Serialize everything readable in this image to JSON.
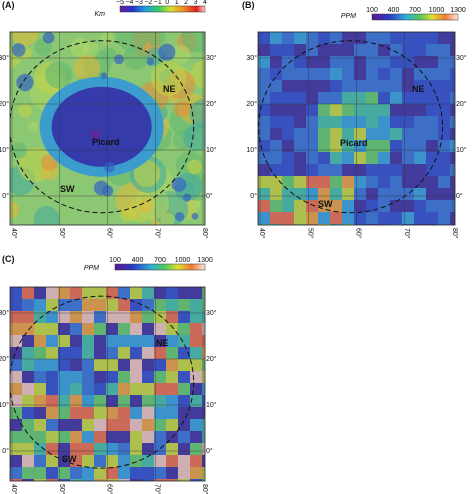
{
  "panels": [
    {
      "label": "(A)",
      "unit": "Km",
      "colorbar_ticks": [
        "−5",
        "−4",
        "−3",
        "−2",
        "−1",
        "0",
        "1",
        "2",
        "3",
        "4"
      ],
      "lat_labels": [
        "30°",
        "20°",
        "10°",
        "0°"
      ],
      "lon_labels": [
        "40°",
        "50°",
        "60°",
        "70°",
        "80°"
      ],
      "regions": [
        "NE",
        "Picard",
        "SW"
      ]
    },
    {
      "label": "(B)",
      "unit": "PPM",
      "colorbar_ticks": [
        "100",
        "400",
        "700",
        "1000",
        "1300"
      ],
      "lat_labels": [
        "30°",
        "20°",
        "10°",
        "0°"
      ],
      "lon_labels": [
        "40°",
        "50°",
        "60°",
        "70°",
        "80°"
      ],
      "regions": [
        "NE",
        "Picard",
        "SW"
      ]
    },
    {
      "label": "(C)",
      "unit": "PPM",
      "colorbar_ticks": [
        "100",
        "400",
        "700",
        "1000",
        "1300"
      ],
      "lat_labels": [
        "30°",
        "20°",
        "10°",
        "0°"
      ],
      "lon_labels": [
        "40°",
        "50°",
        "60°",
        "70°",
        "80°"
      ],
      "regions": [
        "NE",
        "SW"
      ]
    }
  ]
}
